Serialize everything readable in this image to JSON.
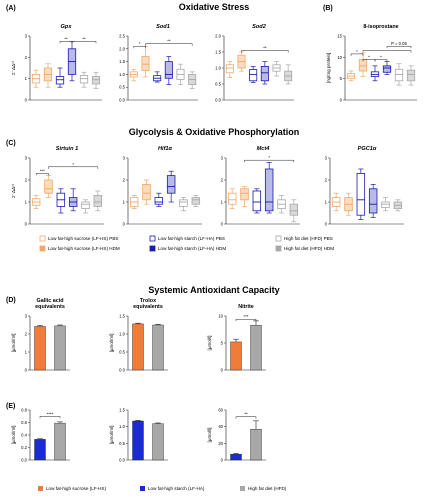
{
  "sections": {
    "A": "(A)",
    "B": "(B)",
    "C": "(C)",
    "D": "(D)",
    "E": "(E)",
    "oxidative_stress": "Oxidative Stress",
    "glycolysis": "Glycolysis & Oxidative Phosphorylation",
    "antioxidant": "Systemic Antioxidant Capacity"
  },
  "colors": {
    "lfhs": "#f0a868",
    "lfhs_fill": "#fbdcbf",
    "lfha": "#1a1ab4",
    "lfha_fill": "#b9b9ec",
    "hfd": "#a8a8a8",
    "hfd_fill": "#d9d9d9"
  },
  "legend_main": [
    {
      "label": "Low fat-high sucrose (LF-HS) PBS",
      "color": "#f0a868",
      "filled": false
    },
    {
      "label": "Low fat-high starch (LF-HA) PBS",
      "color": "#1a1ab4",
      "filled": false
    },
    {
      "label": "High fat diet (HFD) PBS",
      "color": "#a8a8a8",
      "filled": false
    },
    {
      "label": "Low fat-high sucrose (LF-HS) HDM",
      "color": "#f0a868",
      "filled": true
    },
    {
      "label": "Low fat-high starch (LF-HA) HDM",
      "color": "#1a1ab4",
      "filled": true
    },
    {
      "label": "High fat diet (HFD) HDM",
      "color": "#a8a8a8",
      "filled": true
    }
  ],
  "legend_bottom": [
    {
      "label": "Low fat-high sucrose (LF-HS)",
      "color": "#f07c3a"
    },
    {
      "label": "Low fat-high starch (LF-HA)",
      "color": "#1a2bd6"
    },
    {
      "label": "High fat diet (HFD)",
      "color": "#a8a8a8"
    }
  ],
  "chart_data": [
    {
      "id": "gpx",
      "type": "box",
      "title": "Gpx",
      "italic": true,
      "ylabel": "2⁻ᐃᐃᶜᵗ",
      "ylim": [
        0,
        3
      ],
      "yticks": [
        "0",
        "1",
        "2",
        "3"
      ],
      "boxes": [
        {
          "group": "LF-HS PBS",
          "min": 0.6,
          "q1": 0.8,
          "med": 1.0,
          "q3": 1.2,
          "max": 1.4
        },
        {
          "group": "LF-HS HDM",
          "min": 0.6,
          "q1": 0.9,
          "med": 1.2,
          "q3": 1.5,
          "max": 1.7
        },
        {
          "group": "LF-HA PBS",
          "min": 0.6,
          "q1": 0.75,
          "med": 0.95,
          "q3": 1.1,
          "max": 1.5
        },
        {
          "group": "LF-HA HDM",
          "min": 0.9,
          "q1": 1.2,
          "med": 1.8,
          "q3": 2.4,
          "max": 2.75
        },
        {
          "group": "HFD PBS",
          "min": 0.6,
          "q1": 0.8,
          "med": 1.0,
          "q3": 1.15,
          "max": 1.3
        },
        {
          "group": "HFD HDM",
          "min": 0.55,
          "q1": 0.75,
          "med": 0.95,
          "q3": 1.1,
          "max": 1.3
        }
      ],
      "sig": [
        {
          "from": 2,
          "to": 3,
          "label": "**",
          "y": 2.75
        },
        {
          "from": 3,
          "to": 5,
          "label": "**",
          "y": 2.75
        }
      ]
    },
    {
      "id": "sod1",
      "type": "box",
      "title": "Sod1",
      "italic": true,
      "ylim": [
        0,
        2.5
      ],
      "yticks": [
        "0.0",
        "0.5",
        "1.0",
        "1.5",
        "2.0",
        "2.5"
      ],
      "boxes": [
        {
          "group": "LF-HS PBS",
          "min": 0.75,
          "q1": 0.9,
          "med": 1.0,
          "q3": 1.1,
          "max": 1.2
        },
        {
          "group": "LF-HS HDM",
          "min": 0.9,
          "q1": 1.15,
          "med": 1.4,
          "q3": 1.7,
          "max": 2.1
        },
        {
          "group": "LF-HA PBS",
          "min": 0.7,
          "q1": 0.75,
          "med": 0.85,
          "q3": 0.95,
          "max": 1.1
        },
        {
          "group": "LF-HA HDM",
          "min": 0.6,
          "q1": 0.85,
          "med": 1.0,
          "q3": 1.5,
          "max": 1.7
        },
        {
          "group": "HFD PBS",
          "min": 0.6,
          "q1": 0.8,
          "med": 1.0,
          "q3": 1.2,
          "max": 1.4
        },
        {
          "group": "HFD HDM",
          "min": 0.45,
          "q1": 0.6,
          "med": 0.8,
          "q3": 1.0,
          "max": 1.1
        }
      ],
      "sig": [
        {
          "from": 0,
          "to": 1,
          "label": "*",
          "y": 2.1
        },
        {
          "from": 1,
          "to": 5,
          "label": "**",
          "y": 2.2
        }
      ]
    },
    {
      "id": "sod2",
      "type": "box",
      "title": "Sod2",
      "italic": true,
      "ylim": [
        0,
        2.0
      ],
      "yticks": [
        "0.0",
        "0.5",
        "1.0",
        "1.5",
        "2.0"
      ],
      "boxes": [
        {
          "group": "LF-HS PBS",
          "min": 0.7,
          "q1": 0.85,
          "med": 1.0,
          "q3": 1.1,
          "max": 1.2
        },
        {
          "group": "LF-HS HDM",
          "min": 0.9,
          "q1": 1.0,
          "med": 1.2,
          "q3": 1.4,
          "max": 1.5
        },
        {
          "group": "LF-HA PBS",
          "min": 0.55,
          "q1": 0.6,
          "med": 0.8,
          "q3": 0.95,
          "max": 1.05
        },
        {
          "group": "LF-HA HDM",
          "min": 0.5,
          "q1": 0.6,
          "med": 0.85,
          "q3": 1.05,
          "max": 1.2
        },
        {
          "group": "HFD PBS",
          "min": 0.75,
          "q1": 0.9,
          "med": 1.0,
          "q3": 1.1,
          "max": 1.2
        },
        {
          "group": "HFD HDM",
          "min": 0.5,
          "q1": 0.6,
          "med": 0.75,
          "q3": 0.9,
          "max": 1.1
        }
      ],
      "sig": [
        {
          "from": 1,
          "to": 5,
          "label": "**",
          "y": 1.55
        }
      ]
    },
    {
      "id": "isop",
      "type": "box",
      "title": "8-isoprostane",
      "italic": false,
      "ylabel": "[ng/mg protein]",
      "ylim": [
        0,
        15
      ],
      "yticks": [
        "0",
        "5",
        "10",
        "15"
      ],
      "boxes": [
        {
          "group": "LF-HS PBS",
          "min": 4.5,
          "q1": 5.0,
          "med": 5.6,
          "q3": 6.2,
          "max": 6.8
        },
        {
          "group": "LF-HS HDM",
          "min": 5.5,
          "q1": 6.8,
          "med": 8.0,
          "q3": 9.5,
          "max": 11.0
        },
        {
          "group": "LF-HA PBS",
          "min": 4.5,
          "q1": 5.5,
          "med": 6.0,
          "q3": 6.6,
          "max": 8.0
        },
        {
          "group": "LF-HA HDM",
          "min": 6.0,
          "q1": 6.5,
          "med": 7.5,
          "q3": 8.0,
          "max": 9.0
        },
        {
          "group": "HFD PBS",
          "min": 3.5,
          "q1": 4.5,
          "med": 6.0,
          "q3": 7.2,
          "max": 8.5
        },
        {
          "group": "HFD HDM",
          "min": 3.5,
          "q1": 4.5,
          "med": 6.0,
          "q3": 7.0,
          "max": 8.0
        }
      ],
      "sig": [
        {
          "from": 0,
          "to": 1,
          "label": "*",
          "y": 10.8
        },
        {
          "from": 1,
          "to": 2,
          "label": "*",
          "y": 9.5
        },
        {
          "from": 2,
          "to": 3,
          "label": "*",
          "y": 9.5
        },
        {
          "from": 1,
          "to": 5,
          "label": "",
          "y": 11.6
        },
        {
          "from": 3,
          "to": 5,
          "label": "P = 0.05",
          "y": 12.6
        }
      ]
    },
    {
      "id": "sirt",
      "type": "box",
      "title": "Sirtuin 1",
      "italic": true,
      "ylabel": "2⁻ᐃᐃᶜᵗ",
      "ylim": [
        0,
        3
      ],
      "yticks": [
        "0",
        "1",
        "2",
        "3"
      ],
      "boxes": [
        {
          "group": "LF-HS PBS",
          "min": 0.7,
          "q1": 0.85,
          "med": 1.0,
          "q3": 1.15,
          "max": 1.3
        },
        {
          "group": "LF-HS HDM",
          "min": 1.2,
          "q1": 1.4,
          "med": 1.6,
          "q3": 2.0,
          "max": 2.2
        },
        {
          "group": "LF-HA PBS",
          "min": 0.5,
          "q1": 0.8,
          "med": 1.1,
          "q3": 1.4,
          "max": 1.6
        },
        {
          "group": "LF-HA HDM",
          "min": 0.6,
          "q1": 0.8,
          "med": 1.0,
          "q3": 1.2,
          "max": 1.6
        },
        {
          "group": "HFD PBS",
          "min": 0.5,
          "q1": 0.7,
          "med": 0.9,
          "q3": 1.0,
          "max": 1.1
        },
        {
          "group": "HFD HDM",
          "min": 0.6,
          "q1": 0.8,
          "med": 1.0,
          "q3": 1.3,
          "max": 1.5
        }
      ],
      "sig": [
        {
          "from": 0,
          "to": 1,
          "label": "***",
          "y": 2.3
        },
        {
          "from": 1,
          "to": 5,
          "label": "*",
          "y": 2.6
        }
      ]
    },
    {
      "id": "hif",
      "type": "box",
      "title": "Hif1α",
      "italic": true,
      "ylim": [
        0,
        3
      ],
      "yticks": [
        "0",
        "1",
        "2",
        "3"
      ],
      "boxes": [
        {
          "group": "LF-HS PBS",
          "min": 0.7,
          "q1": 0.8,
          "med": 1.0,
          "q3": 1.2,
          "max": 1.3
        },
        {
          "group": "LF-HS HDM",
          "min": 0.9,
          "q1": 1.1,
          "med": 1.4,
          "q3": 1.8,
          "max": 2.0
        },
        {
          "group": "LF-HA PBS",
          "min": 0.8,
          "q1": 0.9,
          "med": 1.0,
          "q3": 1.2,
          "max": 1.4
        },
        {
          "group": "LF-HA HDM",
          "min": 1.0,
          "q1": 1.4,
          "med": 1.7,
          "q3": 2.2,
          "max": 2.4
        },
        {
          "group": "HFD PBS",
          "min": 0.6,
          "q1": 0.8,
          "med": 1.0,
          "q3": 1.1,
          "max": 1.2
        },
        {
          "group": "HFD HDM",
          "min": 0.8,
          "q1": 0.9,
          "med": 1.1,
          "q3": 1.2,
          "max": 1.3
        }
      ],
      "sig": []
    },
    {
      "id": "mct",
      "type": "box",
      "title": "Mct4",
      "italic": true,
      "ylim": [
        0,
        3
      ],
      "yticks": [
        "0",
        "1",
        "2",
        "3"
      ],
      "boxes": [
        {
          "group": "LF-HS PBS",
          "min": 0.7,
          "q1": 0.9,
          "med": 1.1,
          "q3": 1.4,
          "max": 1.6
        },
        {
          "group": "LF-HS HDM",
          "min": 0.8,
          "q1": 1.1,
          "med": 1.4,
          "q3": 1.6,
          "max": 1.7
        },
        {
          "group": "LF-HA PBS",
          "min": 0.5,
          "q1": 0.6,
          "med": 1.0,
          "q3": 1.5,
          "max": 1.6
        },
        {
          "group": "LF-HA HDM",
          "min": 0.5,
          "q1": 0.6,
          "med": 1.0,
          "q3": 2.5,
          "max": 2.8
        },
        {
          "group": "HFD PBS",
          "min": 0.5,
          "q1": 0.7,
          "med": 0.9,
          "q3": 1.1,
          "max": 1.3
        },
        {
          "group": "HFD HDM",
          "min": 0.1,
          "q1": 0.4,
          "med": 0.6,
          "q3": 0.9,
          "max": 1.1
        }
      ],
      "sig": [
        {
          "from": 1,
          "to": 5,
          "label": "*",
          "y": 2.9
        }
      ]
    },
    {
      "id": "pgc",
      "type": "box",
      "title": "PGC1α",
      "italic": true,
      "ylim": [
        0,
        3
      ],
      "yticks": [
        "0",
        "1",
        "2",
        "3"
      ],
      "boxes": [
        {
          "group": "LF-HS PBS",
          "min": 0.6,
          "q1": 0.8,
          "med": 1.0,
          "q3": 1.2,
          "max": 1.4
        },
        {
          "group": "LF-HS HDM",
          "min": 0.4,
          "q1": 0.6,
          "med": 0.9,
          "q3": 1.2,
          "max": 1.4
        },
        {
          "group": "LF-HA PBS",
          "min": 0.2,
          "q1": 0.4,
          "med": 1.1,
          "q3": 2.3,
          "max": 2.5
        },
        {
          "group": "LF-HA HDM",
          "min": 0.3,
          "q1": 0.5,
          "med": 0.9,
          "q3": 1.6,
          "max": 1.8
        },
        {
          "group": "HFD PBS",
          "min": 0.6,
          "q1": 0.75,
          "med": 0.9,
          "q3": 1.0,
          "max": 1.2
        },
        {
          "group": "HFD HDM",
          "min": 0.6,
          "q1": 0.7,
          "med": 0.85,
          "q3": 1.0,
          "max": 1.1
        }
      ],
      "sig": []
    },
    {
      "id": "gae_d",
      "type": "bar",
      "title": "Gallic acid equivalents",
      "ylabel": "[µmol/ml]",
      "ylim": [
        0,
        3
      ],
      "yticks": [
        "0",
        "1",
        "2",
        "3"
      ],
      "bars": [
        {
          "group": "LF-HS",
          "value": 2.42,
          "err": 0.05
        },
        {
          "group": "HFD",
          "value": 2.45,
          "err": 0.05
        }
      ],
      "sig": []
    },
    {
      "id": "tro_d",
      "type": "bar",
      "title": "Trolox equivalents",
      "ylabel": "[µmol/ml]",
      "ylim": [
        0,
        1.5
      ],
      "yticks": [
        "0.0",
        "0.5",
        "1.0",
        "1.5"
      ],
      "bars": [
        {
          "group": "LF-HS",
          "value": 1.28,
          "err": 0.02
        },
        {
          "group": "HFD",
          "value": 1.25,
          "err": 0.02
        }
      ],
      "sig": []
    },
    {
      "id": "nit_d",
      "type": "bar",
      "title": "Nitrite",
      "ylabel": "[µmol/l]",
      "ylim": [
        0,
        10
      ],
      "yticks": [
        "0",
        "5",
        "10"
      ],
      "bars": [
        {
          "group": "LF-HS",
          "value": 5.2,
          "err": 0.5
        },
        {
          "group": "HFD",
          "value": 8.3,
          "err": 0.8
        }
      ],
      "sig": [
        {
          "from": 0,
          "to": 1,
          "label": "***",
          "y": 9.4
        }
      ]
    },
    {
      "id": "gae_e",
      "type": "bar",
      "ylabel": "[µmol/ml]",
      "ylim": [
        0,
        0.8
      ],
      "yticks": [
        "0.0",
        "0.2",
        "0.4",
        "0.6",
        "0.8"
      ],
      "bars": [
        {
          "group": "LF-HA",
          "value": 0.33,
          "err": 0.01
        },
        {
          "group": "HFD",
          "value": 0.59,
          "err": 0.02
        }
      ],
      "sig": [
        {
          "from": 0,
          "to": 1,
          "label": "****",
          "y": 0.7
        }
      ]
    },
    {
      "id": "tro_e",
      "type": "bar",
      "ylabel": "[µmol/ml]",
      "ylim": [
        0,
        1.5
      ],
      "yticks": [
        "0.0",
        "0.5",
        "1.0",
        "1.5"
      ],
      "bars": [
        {
          "group": "LF-HA",
          "value": 1.17,
          "err": 0.02
        },
        {
          "group": "HFD",
          "value": 1.09,
          "err": 0.02
        }
      ],
      "sig": []
    },
    {
      "id": "nit_e",
      "type": "bar",
      "ylabel": "[µmol/l]",
      "ylim": [
        0,
        60
      ],
      "yticks": [
        "0",
        "20",
        "40",
        "60"
      ],
      "bars": [
        {
          "group": "LF-HA",
          "value": 7,
          "err": 1
        },
        {
          "group": "HFD",
          "value": 37,
          "err": 10
        }
      ],
      "sig": [
        {
          "from": 0,
          "to": 1,
          "label": "**",
          "y": 52
        }
      ]
    }
  ]
}
